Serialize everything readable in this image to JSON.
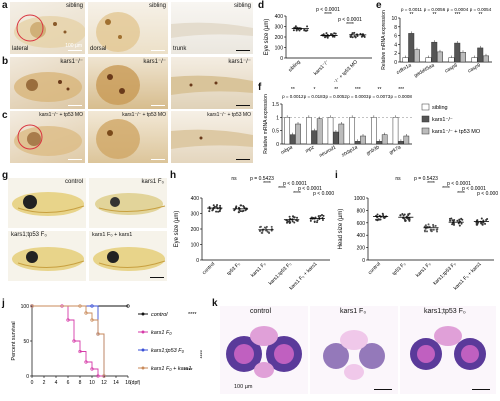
{
  "panels": {
    "a": "a",
    "b": "b",
    "c": "c",
    "d": "d",
    "e": "e",
    "f": "f",
    "g": "g",
    "h": "h",
    "i": "i",
    "j": "j",
    "k": "k"
  },
  "row_a": {
    "labels": [
      "sibling",
      "sibling",
      "sibling"
    ],
    "tags": [
      "lateral",
      "dorsal",
      "trunk"
    ],
    "scale": "100 µm"
  },
  "row_b": {
    "labels": [
      "kars1⁻/⁻",
      "kars1⁻/⁻",
      "kars1⁻/⁻"
    ]
  },
  "row_c": {
    "labels": [
      "kars1⁻/⁻ + tp53 MO",
      "kars1⁻/⁻ + tp53 MO",
      "kars1⁻/⁻ + tp53 MO"
    ]
  },
  "panel_g": {
    "labels": [
      "control",
      "kars1 F₀",
      "kars1;tp53 F₀",
      "kars1 F₀ + kars1"
    ]
  },
  "panel_k": {
    "labels": [
      "control",
      "kars1 F₀",
      "kars1;tp53 F₀"
    ],
    "scale": "100 µm"
  },
  "chart_data": [
    {
      "id": "d",
      "type": "scatter",
      "ylabel": "Eye size (µm)",
      "ylim": [
        0,
        400
      ],
      "yticks": [
        0,
        100,
        200,
        300,
        400
      ],
      "categories": [
        "sibling",
        "kars1⁻/⁻",
        "kars1⁻/⁻ + tp53 MO"
      ],
      "means": [
        280,
        215,
        220
      ],
      "annotations": [
        "p < 0.0001",
        "****",
        "p < 0.0001",
        "****"
      ]
    },
    {
      "id": "e",
      "type": "bar",
      "ylabel": "Relative mRNA expression",
      "ylim": [
        0,
        10
      ],
      "yticks": [
        0,
        2,
        4,
        6,
        8,
        10
      ],
      "categories": [
        "cdkn1a",
        "gadd45aa",
        "casp8",
        "casp9"
      ],
      "series": [
        {
          "name": "sibling",
          "color": "#ffffff",
          "values": [
            1,
            1,
            1,
            1
          ]
        },
        {
          "name": "kars1⁻/⁻",
          "color": "#555555",
          "values": [
            6.5,
            4.5,
            4.3,
            3.2
          ]
        },
        {
          "name": "kars1⁻/⁻ + tp53 MO",
          "color": "#bbbbbb",
          "values": [
            2.8,
            2.3,
            2.2,
            1.4
          ]
        }
      ],
      "annotations": [
        "p = 0.0011",
        "**",
        "p = 0.0056",
        "**",
        "p = 0.0004",
        "***",
        "p = 0.0054",
        "**"
      ]
    },
    {
      "id": "f",
      "type": "bar",
      "ylabel": "Relative mRNA expression",
      "ylim": [
        0,
        1.5
      ],
      "yticks": [
        0,
        0.5,
        1.0,
        1.5
      ],
      "categories": [
        "mbpa",
        "mpz",
        "neurod1",
        "stxbp1a",
        "gnb3b",
        "grk7a"
      ],
      "series": [
        {
          "name": "sibling",
          "values": [
            1,
            1,
            1,
            1,
            1,
            1
          ]
        },
        {
          "name": "kars1⁻/⁻",
          "values": [
            0.35,
            0.5,
            0.45,
            0.1,
            0.1,
            0.1
          ]
        },
        {
          "name": "kars1⁻/⁻ + tp53 MO",
          "values": [
            0.75,
            0.95,
            0.75,
            0.3,
            0.35,
            0.3
          ]
        }
      ],
      "annotations": [
        "**",
        "*",
        "**",
        "***",
        "**",
        "***"
      ],
      "pvalues": [
        "p = 0.0012",
        "p = 0.0183",
        "p = 0.0052",
        "p = 0.0003",
        "p = 0.0073",
        "p = 0.0008"
      ]
    },
    {
      "id": "h",
      "type": "scatter",
      "ylabel": "Eye size (µm)",
      "ylim": [
        0,
        400
      ],
      "yticks": [
        0,
        100,
        200,
        300,
        400
      ],
      "categories": [
        "control",
        "tp53 F₀",
        "kars1 F₀",
        "kars1;tp53 F₀",
        "kars1 F₀ + kars1"
      ],
      "means": [
        335,
        330,
        195,
        260,
        268
      ],
      "annotations": [
        "ns",
        "p = 0.5423",
        "****",
        "p < 0.0001",
        "****",
        "p < 0.0001",
        "****",
        "p < 0.0001"
      ]
    },
    {
      "id": "i",
      "type": "scatter",
      "ylabel": "Head size (µm)",
      "ylim": [
        0,
        1000
      ],
      "yticks": [
        0,
        200,
        400,
        600,
        800,
        1000
      ],
      "categories": [
        "control",
        "tp53 F₀",
        "kars1 F₀",
        "kars1;tp53 F₀",
        "kars1 F₀ + kars1"
      ],
      "means": [
        700,
        690,
        520,
        610,
        620
      ],
      "annotations": [
        "ns",
        "p = 0.5423",
        "****",
        "p < 0.0001",
        "****",
        "p < 0.0001",
        "****",
        "p < 0.0001"
      ]
    },
    {
      "id": "j",
      "type": "line",
      "ylabel": "Percent survival",
      "xlabel": "(dpf)",
      "xlim": [
        0,
        16
      ],
      "ylim": [
        0,
        100
      ],
      "xticks": [
        0,
        2,
        4,
        6,
        8,
        10,
        12,
        14,
        16
      ],
      "yticks": [
        0,
        50,
        100
      ],
      "series": [
        {
          "name": "control",
          "color": "#111111",
          "x": [
            0,
            16
          ],
          "y": [
            100,
            100
          ]
        },
        {
          "name": "kars1 F₀",
          "color": "#d63aa8",
          "x": [
            0,
            5,
            6,
            7,
            8,
            9,
            10,
            11,
            12
          ],
          "y": [
            100,
            100,
            80,
            50,
            35,
            20,
            10,
            0,
            0
          ]
        },
        {
          "name": "kars1;tp53 F₀",
          "color": "#3a4fd6",
          "x": [
            0,
            10,
            11,
            12
          ],
          "y": [
            100,
            100,
            60,
            0
          ]
        },
        {
          "name": "kars1 F₀ + kars1",
          "color": "#c98a5a",
          "x": [
            0,
            8,
            9,
            10,
            11,
            12
          ],
          "y": [
            100,
            100,
            90,
            80,
            60,
            0
          ]
        }
      ],
      "annotations": [
        "****",
        "****",
        "****"
      ]
    }
  ]
}
